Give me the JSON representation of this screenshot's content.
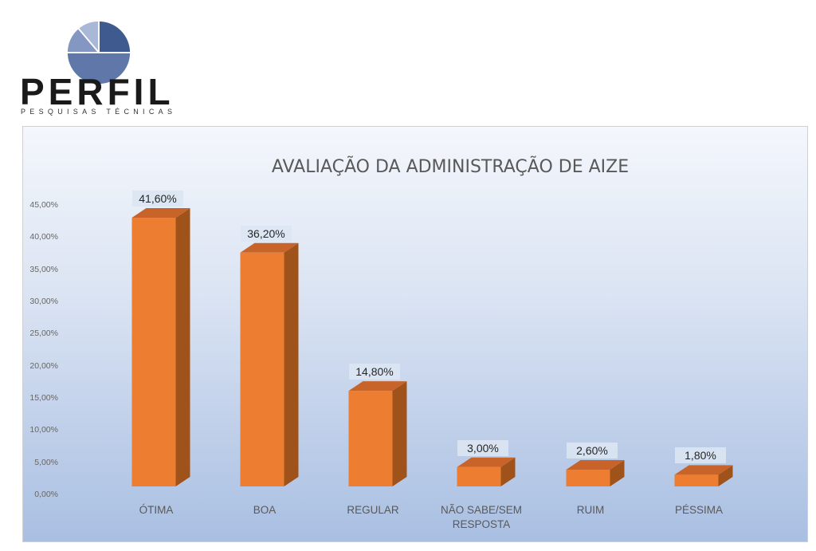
{
  "logo": {
    "name": "PERFIL",
    "tagline": "PESQUISAS TÉCNICAS"
  },
  "chart_data": {
    "type": "bar",
    "title": "AVALIAÇÃO DA ADMINISTRAÇÃO DE AIZE",
    "categories": [
      "ÓTIMA",
      "BOA",
      "REGULAR",
      "NÃO SABE/SEM RESPOSTA",
      "RUIM",
      "PÉSSIMA"
    ],
    "category_lines": [
      [
        "ÓTIMA"
      ],
      [
        "BOA"
      ],
      [
        "REGULAR"
      ],
      [
        "NÃO SABE/SEM",
        "RESPOSTA"
      ],
      [
        "RUIM"
      ],
      [
        "PÉSSIMA"
      ]
    ],
    "values": [
      41.6,
      36.2,
      14.8,
      3.0,
      2.6,
      1.8
    ],
    "data_labels": [
      "41,60%",
      "36,20%",
      "14,80%",
      "3,00%",
      "2,60%",
      "1,80%"
    ],
    "yticks": [
      "0,00%",
      "5,00%",
      "10,00%",
      "15,00%",
      "20,00%",
      "25,00%",
      "30,00%",
      "35,00%",
      "40,00%",
      "45,00%"
    ],
    "ylim": [
      0,
      45
    ],
    "xlabel": "",
    "ylabel": "",
    "grid": false,
    "colors": {
      "bar_front": "#ed7d31",
      "bar_side": "#a0521b",
      "bar_top": "#c8642a"
    }
  }
}
